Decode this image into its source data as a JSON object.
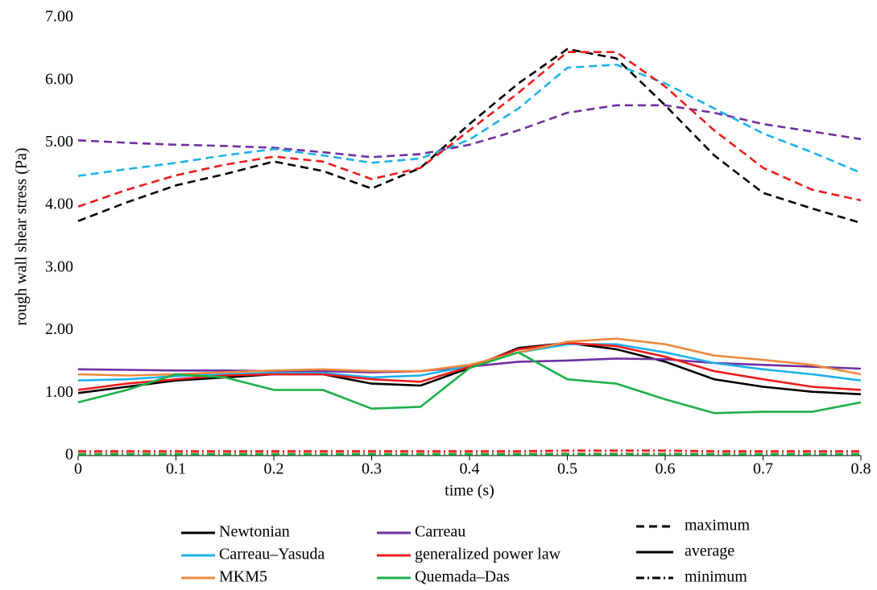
{
  "chart_data": {
    "type": "line",
    "y_label": "rough wall shear stress (Pa)",
    "x_label": "time (s)",
    "x": [
      0,
      0.05,
      0.1,
      0.15,
      0.2,
      0.25,
      0.3,
      0.35,
      0.4,
      0.45,
      0.5,
      0.55,
      0.6,
      0.65,
      0.7,
      0.75,
      0.8
    ],
    "xlim": [
      0,
      0.8
    ],
    "xticks": [
      0,
      0.1,
      0.2,
      0.3,
      0.4,
      0.5,
      0.6,
      0.7,
      0.8
    ],
    "ylim": [
      0,
      7
    ],
    "yticks": [
      0,
      {
        "value": 1,
        "label": "1.00"
      },
      {
        "value": 2,
        "label": "2.00"
      },
      {
        "value": 3,
        "label": "3.00"
      },
      {
        "value": 4,
        "label": "4.00"
      },
      {
        "value": 5,
        "label": "5.00"
      },
      {
        "value": 6,
        "label": "6.00"
      },
      {
        "value": 7,
        "label": "7.00"
      }
    ],
    "grid": false,
    "line_styles": [
      {
        "name": "maximum",
        "dash": "10 6"
      },
      {
        "name": "average",
        "dash": "none"
      },
      {
        "name": "minimum",
        "dash": "10 4 2 4"
      }
    ],
    "series": [
      {
        "name": "Newtonian",
        "color": "#000000",
        "values": [
          [
            3.75,
            4.05,
            4.32,
            4.5,
            4.7,
            4.55,
            4.27,
            4.6,
            5.3,
            5.95,
            6.5,
            6.35,
            5.6,
            4.8,
            4.2,
            3.95,
            3.72
          ],
          [
            1.0,
            1.1,
            1.2,
            1.25,
            1.3,
            1.3,
            1.15,
            1.12,
            1.4,
            1.72,
            1.8,
            1.7,
            1.5,
            1.22,
            1.1,
            1.02,
            0.98
          ],
          [
            0.03,
            0.03,
            0.03,
            0.03,
            0.03,
            0.03,
            0.03,
            0.03,
            0.03,
            0.03,
            0.03,
            0.03,
            0.03,
            0.03,
            0.03,
            0.03,
            0.03
          ]
        ]
      },
      {
        "name": "Carreau",
        "color": "#7030a0",
        "values": [
          [
            5.04,
            5.0,
            4.97,
            4.95,
            4.92,
            4.85,
            4.77,
            4.82,
            4.97,
            5.2,
            5.48,
            5.6,
            5.6,
            5.48,
            5.3,
            5.18,
            5.06
          ],
          [
            1.38,
            1.37,
            1.36,
            1.36,
            1.35,
            1.35,
            1.33,
            1.35,
            1.42,
            1.5,
            1.52,
            1.55,
            1.54,
            1.48,
            1.45,
            1.42,
            1.39
          ],
          [
            0.03,
            0.03,
            0.03,
            0.03,
            0.03,
            0.03,
            0.03,
            0.03,
            0.03,
            0.03,
            0.03,
            0.03,
            0.03,
            0.03,
            0.03,
            0.03,
            0.03
          ]
        ]
      },
      {
        "name": "Carreau–Yasuda",
        "color": "#1fb1ec",
        "values": [
          [
            4.47,
            4.58,
            4.68,
            4.8,
            4.9,
            4.8,
            4.68,
            4.75,
            5.05,
            5.55,
            6.2,
            6.25,
            5.95,
            5.55,
            5.15,
            4.85,
            4.52
          ],
          [
            1.2,
            1.22,
            1.27,
            1.3,
            1.32,
            1.32,
            1.25,
            1.28,
            1.43,
            1.65,
            1.78,
            1.78,
            1.65,
            1.48,
            1.38,
            1.3,
            1.2
          ],
          [
            0.03,
            0.03,
            0.03,
            0.03,
            0.03,
            0.03,
            0.03,
            0.03,
            0.03,
            0.03,
            0.03,
            0.03,
            0.03,
            0.03,
            0.03,
            0.03,
            0.03
          ]
        ]
      },
      {
        "name": "generalized power law",
        "color": "#ee1c1c",
        "values": [
          [
            3.98,
            4.25,
            4.48,
            4.65,
            4.78,
            4.7,
            4.42,
            4.6,
            5.2,
            5.8,
            6.45,
            6.45,
            5.9,
            5.2,
            4.6,
            4.25,
            4.08
          ],
          [
            1.05,
            1.15,
            1.22,
            1.28,
            1.3,
            1.3,
            1.22,
            1.18,
            1.42,
            1.7,
            1.8,
            1.75,
            1.58,
            1.35,
            1.22,
            1.1,
            1.05
          ],
          [
            0.07,
            0.07,
            0.07,
            0.07,
            0.07,
            0.07,
            0.07,
            0.07,
            0.07,
            0.07,
            0.08,
            0.08,
            0.08,
            0.07,
            0.07,
            0.07,
            0.07
          ]
        ]
      },
      {
        "name": "MKM5",
        "color": "#ed8a3f",
        "values": [
          null,
          [
            1.3,
            1.28,
            1.3,
            1.33,
            1.36,
            1.38,
            1.35,
            1.35,
            1.45,
            1.65,
            1.82,
            1.87,
            1.78,
            1.6,
            1.53,
            1.45,
            1.3
          ],
          [
            0.03,
            0.03,
            0.03,
            0.03,
            0.03,
            0.03,
            0.03,
            0.03,
            0.03,
            0.03,
            0.03,
            0.03,
            0.03,
            0.03,
            0.03,
            0.03,
            0.03
          ]
        ]
      },
      {
        "name": "Quemada–Das",
        "color": "#1eb04a",
        "values": [
          null,
          [
            0.85,
            1.05,
            1.3,
            1.25,
            1.05,
            1.05,
            0.75,
            0.78,
            1.4,
            1.65,
            1.22,
            1.15,
            0.9,
            0.68,
            0.7,
            0.7,
            0.85
          ],
          [
            0.02,
            0.02,
            0.02,
            0.02,
            0.02,
            0.02,
            0.02,
            0.02,
            0.02,
            0.02,
            0.02,
            0.02,
            0.02,
            0.02,
            0.02,
            0.02,
            0.02
          ]
        ]
      }
    ]
  }
}
